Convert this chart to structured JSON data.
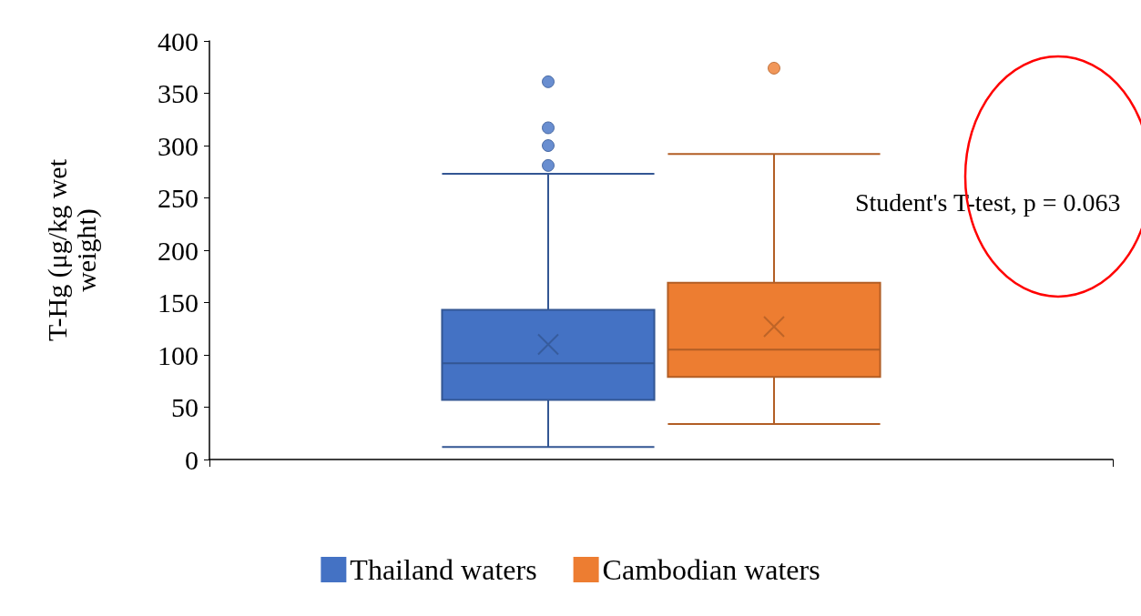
{
  "chart_data": {
    "type": "box",
    "categories": [
      null
    ],
    "ylabel": "T-Hg (μg/kg wet weight)",
    "ylim": [
      0,
      400
    ],
    "yticks": [
      0,
      50,
      100,
      150,
      200,
      250,
      300,
      350,
      400
    ],
    "grid": false,
    "legend": "bottom",
    "annotations": [
      "Student's T-test, p = 0.063"
    ],
    "series": [
      {
        "name": "Thailand waters",
        "color": "#4472c4",
        "boxes": [
          {
            "low": 12,
            "q1": 57,
            "median": 92,
            "q3": 143,
            "high": 273,
            "mean": 110,
            "outliers": [
              281,
              300,
              317,
              361
            ]
          }
        ]
      },
      {
        "name": "Cambodian waters",
        "color": "#ed7d31",
        "boxes": [
          {
            "low": 34,
            "q1": 79,
            "median": 105,
            "q3": 169,
            "high": 292,
            "mean": 127,
            "outliers": [
              374
            ]
          }
        ]
      }
    ]
  }
}
